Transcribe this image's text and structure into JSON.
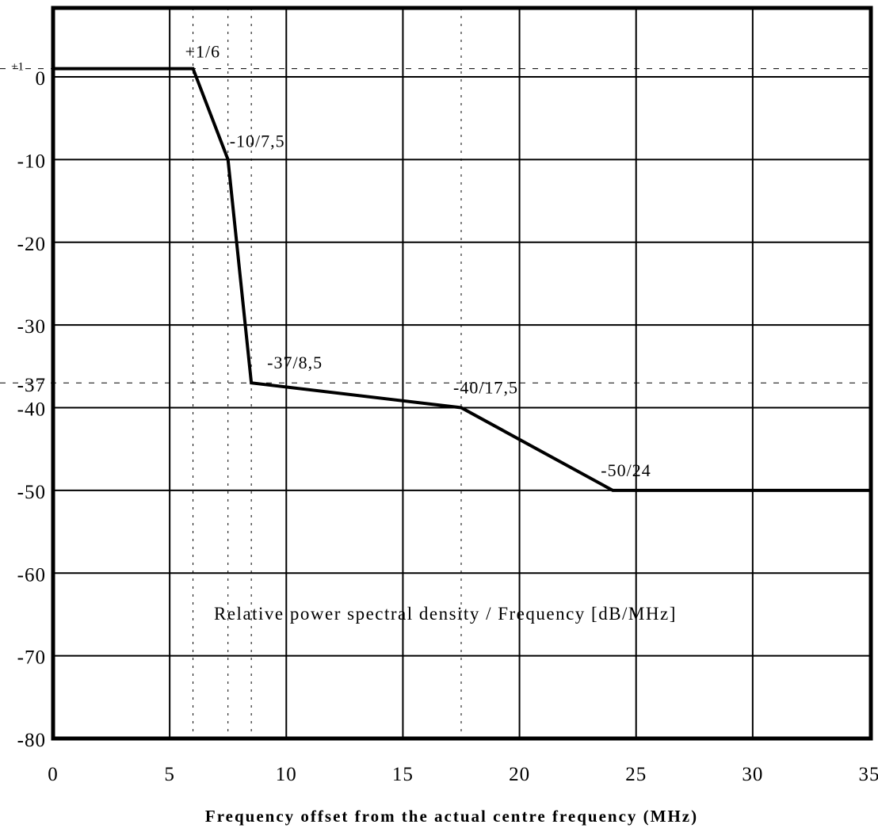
{
  "chart_data": {
    "type": "line",
    "title": "Relative power spectral density / Frequency [dB/MHz]",
    "xlabel": "Frequency offset from the actual centre frequency (MHz)",
    "ylabel": "",
    "xlim": [
      0,
      35
    ],
    "ylim": [
      -80,
      0
    ],
    "xticks": [
      0,
      5,
      10,
      15,
      20,
      25,
      30,
      35
    ],
    "yticks": [
      0,
      -10,
      -20,
      -30,
      -40,
      -50,
      -60,
      -70,
      -80
    ],
    "extra_ytick_labels": [
      {
        "value": 1,
        "label": "+1"
      },
      {
        "value": -37,
        "label": "-37"
      }
    ],
    "grid": true,
    "series": [
      {
        "points": [
          {
            "x": 0,
            "y": 1
          },
          {
            "x": 6,
            "y": 1
          },
          {
            "x": 7.5,
            "y": -10
          },
          {
            "x": 8.5,
            "y": -37
          },
          {
            "x": 17.5,
            "y": -40
          },
          {
            "x": 24,
            "y": -50
          },
          {
            "x": 35,
            "y": -50
          }
        ]
      }
    ],
    "point_labels": [
      {
        "text": "+1/6",
        "x": 6,
        "y": 1
      },
      {
        "text": "-10/7,5",
        "x": 7.5,
        "y": -10
      },
      {
        "text": "-37/8,5",
        "x": 8.5,
        "y": -37
      },
      {
        "text": "-40/17,5",
        "x": 17.5,
        "y": -40
      },
      {
        "text": "-50/24",
        "x": 24,
        "y": -50
      }
    ],
    "reference_lines_vertical": [
      6,
      7.5,
      8.5,
      17.5
    ],
    "reference_lines_horizontal": [
      1,
      -37
    ]
  }
}
